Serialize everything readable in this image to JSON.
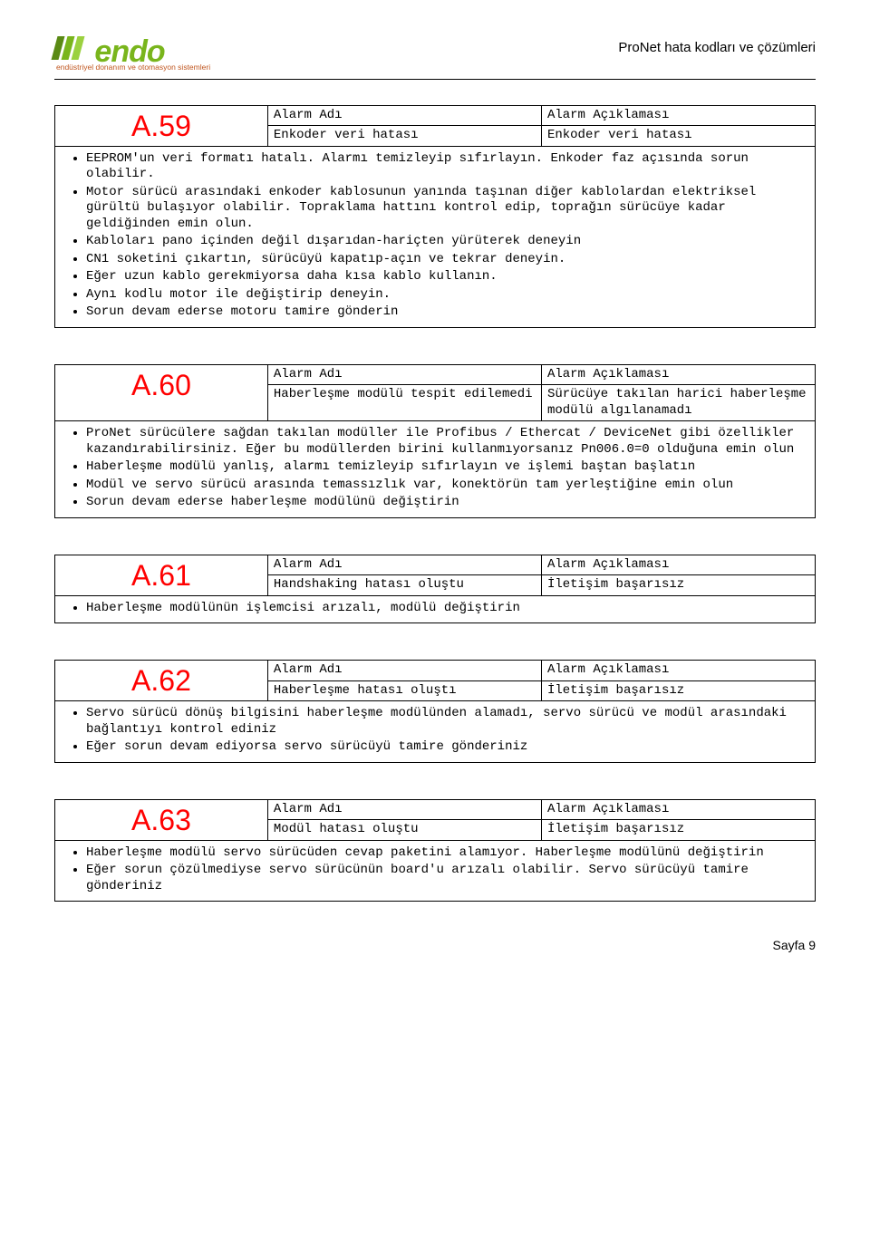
{
  "header": {
    "logo_text": "endo",
    "logo_sub": "endüstriyel donanım ve otomasyon sistemleri",
    "doc_title": "ProNet hata kodları ve çözümleri"
  },
  "labels": {
    "alarm_name": "Alarm Adı",
    "alarm_desc": "Alarm Açıklaması"
  },
  "alarms": [
    {
      "code": "A.59",
      "name": "Enkoder veri hatası",
      "desc": "Enkoder veri hatası",
      "bullets": [
        "EEPROM'un veri formatı hatalı. Alarmı temizleyip sıfırlayın. Enkoder faz açısında sorun olabilir.",
        "Motor sürücü arasındaki enkoder kablosunun yanında taşınan diğer kablolardan elektriksel gürültü bulaşıyor olabilir. Topraklama hattını kontrol edip, toprağın sürücüye kadar geldiğinden emin olun.",
        "Kabloları pano içinden değil dışarıdan-hariçten yürüterek deneyin",
        "CN1 soketini çıkartın, sürücüyü kapatıp-açın ve tekrar deneyin.",
        "Eğer uzun kablo gerekmiyorsa daha kısa kablo kullanın.",
        "Aynı kodlu motor ile değiştirip deneyin.",
        "Sorun devam ederse motoru tamire gönderin"
      ]
    },
    {
      "code": "A.60",
      "name": "Haberleşme modülü tespit edilemedi",
      "desc": "Sürücüye takılan harici haberleşme modülü algılanamadı",
      "bullets": [
        "ProNet sürücülere sağdan takılan modüller ile Profibus / Ethercat / DeviceNet gibi özellikler kazandırabilirsiniz. Eğer bu modüllerden birini kullanmıyorsanız Pn006.0=0 olduğuna emin olun",
        "Haberleşme modülü yanlış, alarmı temizleyip sıfırlayın ve işlemi baştan başlatın",
        "Modül ve servo sürücü arasında temassızlık var, konektörün tam yerleştiğine emin olun",
        "Sorun devam ederse haberleşme modülünü değiştirin"
      ]
    },
    {
      "code": "A.61",
      "name": "Handshaking hatası oluştu",
      "desc": "İletişim başarısız",
      "bullets": [
        "Haberleşme modülünün işlemcisi arızalı, modülü değiştirin"
      ]
    },
    {
      "code": "A.62",
      "name": "Haberleşme hatası oluştı",
      "desc": "İletişim başarısız",
      "bullets": [
        "Servo sürücü dönüş bilgisini haberleşme modülünden alamadı, servo sürücü ve modül arasındaki bağlantıyı kontrol ediniz",
        "Eğer sorun devam ediyorsa servo sürücüyü tamire gönderiniz"
      ]
    },
    {
      "code": "A.63",
      "name": "Modül hatası oluştu",
      "desc": "İletişim başarısız",
      "bullets": [
        "Haberleşme modülü servo sürücüden cevap paketini alamıyor. Haberleşme modülünü değiştirin",
        "Eğer sorun çözülmediyse servo sürücünün board'u arızalı olabilir. Servo sürücüyü tamire gönderiniz"
      ]
    }
  ],
  "footer": {
    "page_label": "Sayfa 9"
  },
  "colors": {
    "alarm_code": "#ff0000",
    "logo_green": "#79b51c",
    "logo_sub": "#c0561f",
    "border": "#000000",
    "background": "#ffffff"
  }
}
